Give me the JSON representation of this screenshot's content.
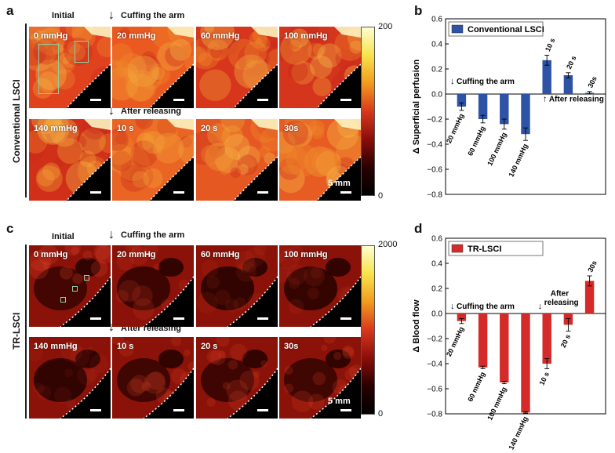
{
  "panel_letters": {
    "a": "a",
    "b": "b",
    "c": "c",
    "d": "d"
  },
  "row_labels": {
    "conventional": "Conventional  LSCI",
    "tr": "TR-LSCI"
  },
  "annotations": {
    "initial": "Initial",
    "cuffing": "Cuffing the arm",
    "after_releasing": "After releasing",
    "after_releasing_line1": "After",
    "after_releasing_line2": "releasing",
    "scale": "5 mm"
  },
  "panel_a": {
    "tiles": [
      "0 mmHg",
      "20 mmHg",
      "60 mmHg",
      "100 mmHg",
      "140 mmHg",
      "10 s",
      "20 s",
      "30s"
    ],
    "colorbar": {
      "max": "200",
      "min": "0"
    }
  },
  "panel_c": {
    "tiles": [
      "0 mmHg",
      "20 mmHg",
      "60 mmHg",
      "100 mmHg",
      "140 mmHg",
      "10 s",
      "20 s",
      "30s"
    ],
    "colorbar": {
      "max": "2000",
      "min": "0"
    }
  },
  "chart_data": [
    {
      "id": "b",
      "type": "bar",
      "legend": "Conventional LSCI",
      "color": "#2e52a6",
      "ylabel": "Δ Superficial perfusion",
      "ylim": [
        -0.8,
        0.6
      ],
      "yticks": [
        "0.6",
        "0.4",
        "0.2",
        "0.0",
        "−0.2",
        "−0.4",
        "−0.6",
        "−0.8"
      ],
      "categories": [
        "20 mmHg",
        "60 mmHg",
        "100 mmHg",
        "140 mmHg",
        "10 s",
        "20 s",
        "30s"
      ],
      "values": [
        -0.1,
        -0.2,
        -0.24,
        -0.32,
        0.27,
        0.15,
        0.01
      ],
      "errors": [
        0.03,
        0.03,
        0.04,
        0.05,
        0.04,
        0.02,
        0.01
      ]
    },
    {
      "id": "d",
      "type": "bar",
      "legend": "TR-LSCI",
      "color": "#d42a2a",
      "ylabel": "Δ Blood flow",
      "ylim": [
        -0.8,
        0.6
      ],
      "yticks": [
        "0.6",
        "0.4",
        "0.2",
        "0.0",
        "−0.2",
        "−0.4",
        "−0.6",
        "−0.8"
      ],
      "categories": [
        "20 mmHg",
        "60 mmHg",
        "100 mmHg",
        "140 mmHg",
        "10 s",
        "20 s",
        "30s"
      ],
      "values": [
        -0.06,
        -0.43,
        -0.55,
        -0.79,
        -0.4,
        -0.09,
        0.26
      ],
      "errors": [
        0.02,
        0.01,
        0.01,
        0.005,
        0.04,
        0.05,
        0.04
      ]
    }
  ]
}
